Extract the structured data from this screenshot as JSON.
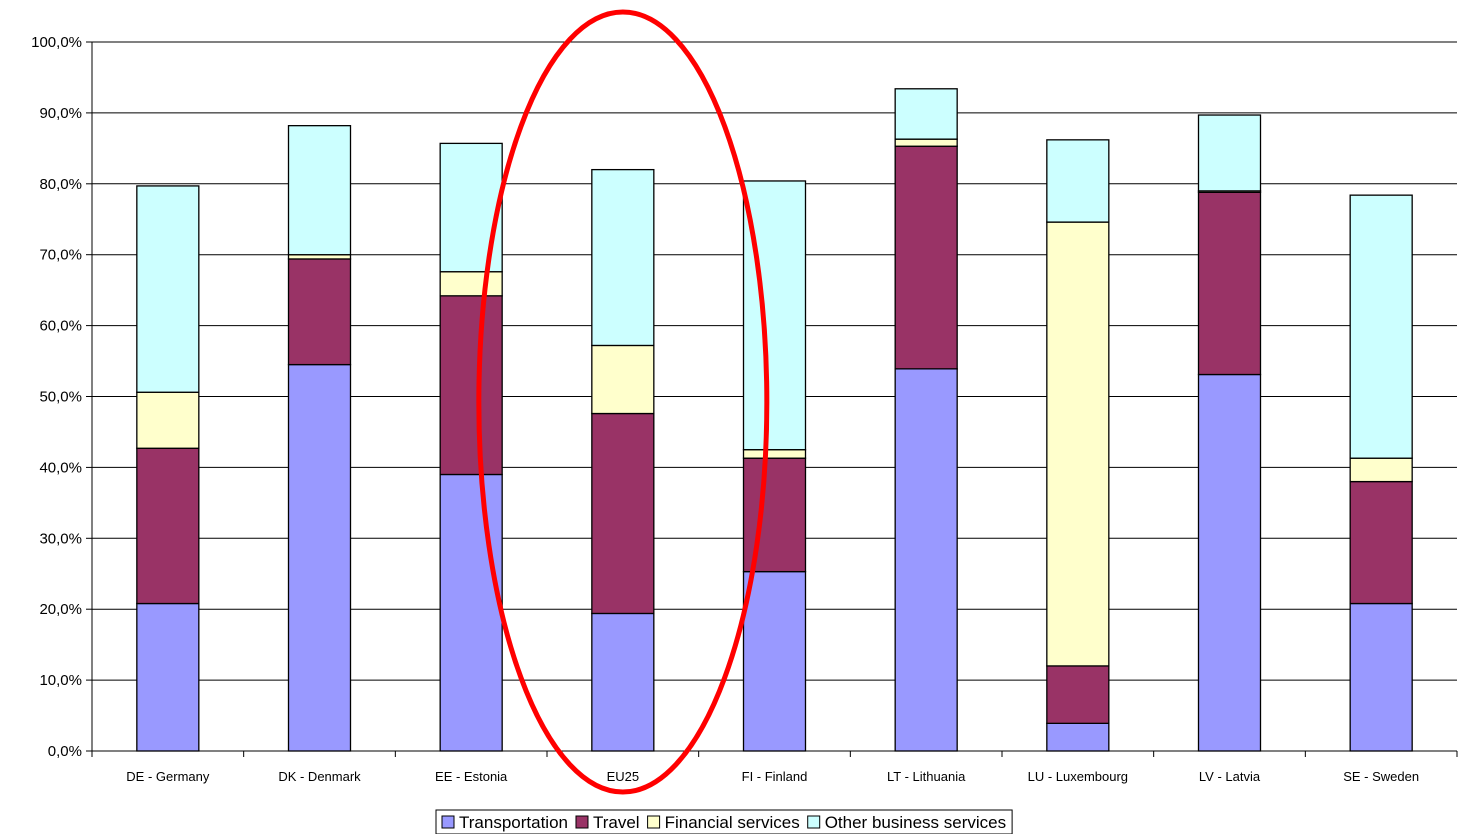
{
  "chart_data": {
    "type": "bar",
    "stacked": true,
    "categories": [
      "DE - Germany",
      "DK - Denmark",
      "EE - Estonia",
      "EU25",
      "FI - Finland",
      "LT - Lithuania",
      "LU - Luxembourg",
      "LV - Latvia",
      "SE - Sweden"
    ],
    "series": [
      {
        "name": "Transportation",
        "color": "#9999ff",
        "values": [
          20.8,
          54.5,
          39.0,
          19.4,
          25.3,
          53.9,
          3.9,
          53.1,
          20.8
        ]
      },
      {
        "name": "Travel",
        "color": "#993366",
        "values": [
          21.9,
          14.9,
          25.2,
          28.2,
          16.0,
          31.4,
          8.1,
          25.7,
          17.2
        ]
      },
      {
        "name": "Financial services",
        "color": "#ffffcc",
        "values": [
          7.9,
          0.6,
          3.4,
          9.6,
          1.2,
          1.0,
          62.6,
          0.2,
          3.3
        ]
      },
      {
        "name": "Other business services",
        "color": "#ccffff",
        "values": [
          29.1,
          18.2,
          18.1,
          24.8,
          37.9,
          7.1,
          11.6,
          10.7,
          37.1
        ]
      }
    ],
    "yticks": [
      "0,0%",
      "10,0%",
      "20,0%",
      "30,0%",
      "40,0%",
      "50,0%",
      "60,0%",
      "70,0%",
      "80,0%",
      "90,0%",
      "100,0%"
    ],
    "ylim": [
      0,
      100
    ],
    "grid": true,
    "legend_position": "bottom",
    "highlight": {
      "category": "EU25",
      "shape": "ellipse",
      "color": "#ff0000"
    }
  }
}
